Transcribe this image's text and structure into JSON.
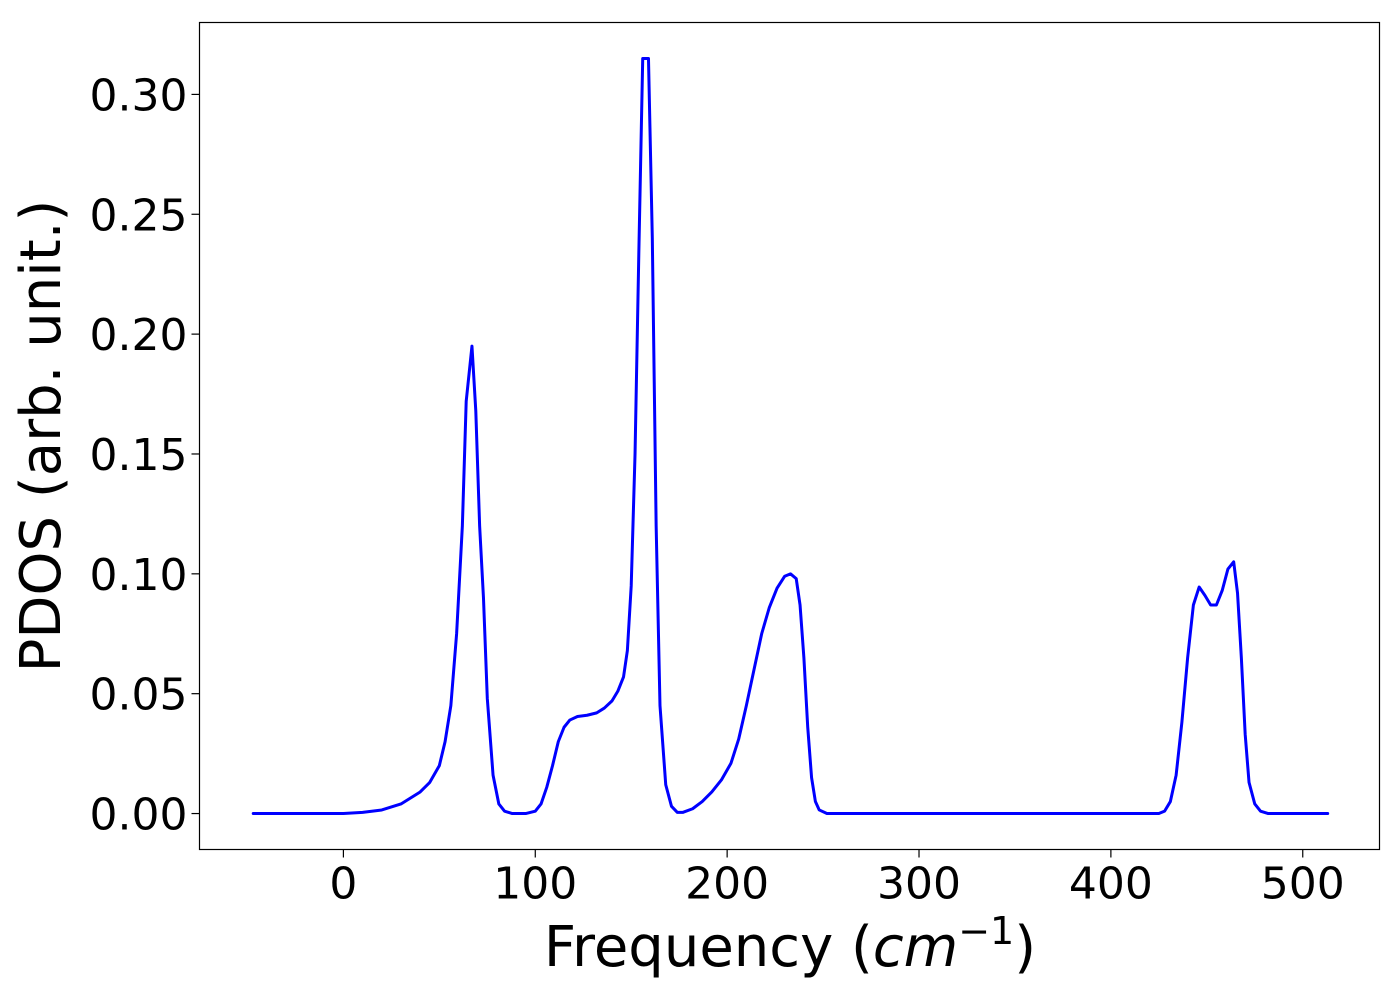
{
  "chart_data": {
    "type": "line",
    "title": "",
    "xlabel": "Frequency (cm^-1)",
    "xlabel_parts": {
      "prefix": "Frequency (",
      "math": "cm",
      "sup": "−1",
      "suffix": ")"
    },
    "ylabel": "PDOS (arb. unit.)",
    "xlim": [
      -75,
      540
    ],
    "ylim": [
      -0.015,
      0.33
    ],
    "xticks": [
      0,
      100,
      200,
      300,
      400,
      500
    ],
    "xtick_labels": [
      "0",
      "100",
      "200",
      "300",
      "400",
      "500"
    ],
    "yticks": [
      0.0,
      0.05,
      0.1,
      0.15,
      0.2,
      0.25,
      0.3
    ],
    "ytick_labels": [
      "0.00",
      "0.05",
      "0.10",
      "0.15",
      "0.20",
      "0.25",
      "0.30"
    ],
    "grid": false,
    "legend": "none",
    "series": [
      {
        "color": "#0000ff",
        "points": [
          [
            -47,
            0.0
          ],
          [
            0,
            0.0
          ],
          [
            10,
            0.0005
          ],
          [
            20,
            0.0015
          ],
          [
            30,
            0.004
          ],
          [
            40,
            0.009
          ],
          [
            45,
            0.013
          ],
          [
            50,
            0.02
          ],
          [
            53,
            0.03
          ],
          [
            56,
            0.045
          ],
          [
            59,
            0.075
          ],
          [
            62,
            0.12
          ],
          [
            64,
            0.172
          ],
          [
            67,
            0.195
          ],
          [
            69,
            0.168
          ],
          [
            71,
            0.12
          ],
          [
            73,
            0.09
          ],
          [
            75,
            0.048
          ],
          [
            78,
            0.016
          ],
          [
            81,
            0.004
          ],
          [
            84,
            0.001
          ],
          [
            88,
            0.0
          ],
          [
            95,
            0.0
          ],
          [
            100,
            0.001
          ],
          [
            103,
            0.004
          ],
          [
            106,
            0.011
          ],
          [
            109,
            0.02
          ],
          [
            112,
            0.03
          ],
          [
            115,
            0.036
          ],
          [
            118,
            0.039
          ],
          [
            122,
            0.0405
          ],
          [
            127,
            0.041
          ],
          [
            132,
            0.042
          ],
          [
            136,
            0.044
          ],
          [
            140,
            0.047
          ],
          [
            143,
            0.051
          ],
          [
            146,
            0.057
          ],
          [
            148,
            0.068
          ],
          [
            150,
            0.095
          ],
          [
            152,
            0.15
          ],
          [
            154,
            0.235
          ],
          [
            156,
            0.315
          ],
          [
            159,
            0.315
          ],
          [
            161,
            0.24
          ],
          [
            163,
            0.12
          ],
          [
            165,
            0.045
          ],
          [
            168,
            0.012
          ],
          [
            171,
            0.003
          ],
          [
            174,
            0.0005
          ],
          [
            177,
            0.0005
          ],
          [
            182,
            0.002
          ],
          [
            187,
            0.005
          ],
          [
            192,
            0.009
          ],
          [
            197,
            0.014
          ],
          [
            202,
            0.021
          ],
          [
            206,
            0.031
          ],
          [
            210,
            0.045
          ],
          [
            214,
            0.06
          ],
          [
            218,
            0.075
          ],
          [
            222,
            0.086
          ],
          [
            226,
            0.094
          ],
          [
            230,
            0.099
          ],
          [
            233,
            0.1
          ],
          [
            236,
            0.098
          ],
          [
            238,
            0.087
          ],
          [
            240,
            0.065
          ],
          [
            242,
            0.036
          ],
          [
            244,
            0.015
          ],
          [
            246,
            0.005
          ],
          [
            248,
            0.0015
          ],
          [
            252,
            0.0
          ],
          [
            300,
            0.0
          ],
          [
            350,
            0.0
          ],
          [
            400,
            0.0
          ],
          [
            425,
            0.0
          ],
          [
            428,
            0.001
          ],
          [
            431,
            0.005
          ],
          [
            434,
            0.016
          ],
          [
            437,
            0.038
          ],
          [
            440,
            0.065
          ],
          [
            443,
            0.087
          ],
          [
            446,
            0.0945
          ],
          [
            449,
            0.091
          ],
          [
            452,
            0.087
          ],
          [
            455,
            0.087
          ],
          [
            458,
            0.093
          ],
          [
            461,
            0.102
          ],
          [
            464,
            0.105
          ],
          [
            466,
            0.092
          ],
          [
            468,
            0.065
          ],
          [
            470,
            0.033
          ],
          [
            472,
            0.013
          ],
          [
            475,
            0.004
          ],
          [
            478,
            0.001
          ],
          [
            482,
            0.0
          ],
          [
            513,
            0.0
          ]
        ]
      }
    ]
  }
}
